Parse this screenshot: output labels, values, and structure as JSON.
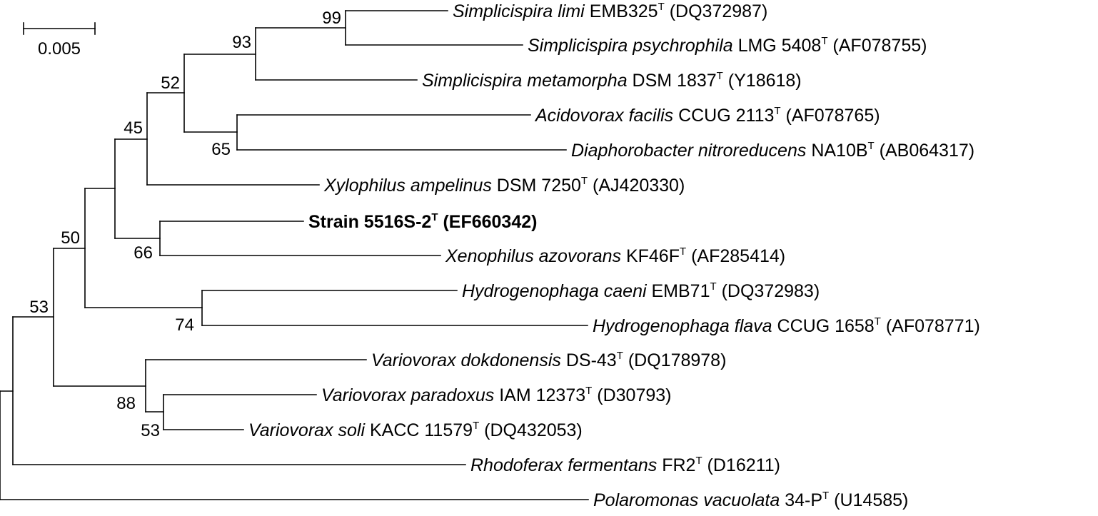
{
  "scale_bar": {
    "label": "0.005"
  },
  "taxa": [
    {
      "id": "s-limi",
      "italic": "Simplicispira limi",
      "strain": "EMB325",
      "sup": "T",
      "accession": "(DQ372987)",
      "bold": false
    },
    {
      "id": "s-psychrophila",
      "italic": "Simplicispira psychrophila",
      "strain": "LMG 5408",
      "sup": "T",
      "accession": "(AF078755)",
      "bold": false
    },
    {
      "id": "s-metamorpha",
      "italic": "Simplicispira metamorpha",
      "strain": "DSM 1837",
      "sup": "T",
      "accession": "(Y18618)",
      "bold": false
    },
    {
      "id": "a-facilis",
      "italic": "Acidovorax facilis",
      "strain": "CCUG 2113",
      "sup": "T",
      "accession": "(AF078765)",
      "bold": false
    },
    {
      "id": "d-nitroreducens",
      "italic": "Diaphorobacter nitroreducens",
      "strain": "NA10B",
      "sup": "T",
      "accession": "(AB064317)",
      "bold": false
    },
    {
      "id": "x-ampelinus",
      "italic": "Xylophilus ampelinus",
      "strain": "DSM 7250",
      "sup": "T",
      "accession": "(AJ420330)",
      "bold": false
    },
    {
      "id": "strain-5516s-2",
      "italic": "",
      "strain": "Strain 5516S-2",
      "sup": "T",
      "accession": "(EF660342)",
      "bold": true
    },
    {
      "id": "x-azovorans",
      "italic": "Xenophilus azovorans",
      "strain": "KF46F",
      "sup": "T",
      "accession": "(AF285414)",
      "bold": false
    },
    {
      "id": "h-caeni",
      "italic": "Hydrogenophaga caeni",
      "strain": "EMB71",
      "sup": "T",
      "accession": "(DQ372983)",
      "bold": false
    },
    {
      "id": "h-flava",
      "italic": "Hydrogenophaga flava",
      "strain": "CCUG 1658",
      "sup": "T",
      "accession": "(AF078771)",
      "bold": false
    },
    {
      "id": "v-dokdonensis",
      "italic": "Variovorax dokdonensis",
      "strain": "DS-43",
      "sup": "T",
      "accession": "(DQ178978)",
      "bold": false
    },
    {
      "id": "v-paradoxus",
      "italic": "Variovorax paradoxus",
      "strain": "IAM 12373",
      "sup": "T",
      "accession": "(D30793)",
      "bold": false
    },
    {
      "id": "v-soli",
      "italic": "Variovorax soli",
      "strain": "KACC 11579",
      "sup": "T",
      "accession": "(DQ432053)",
      "bold": false
    },
    {
      "id": "r-fermentans",
      "italic": "Rhodoferax fermentans",
      "strain": "FR2",
      "sup": "T",
      "accession": "(D16211)",
      "bold": false
    },
    {
      "id": "p-vacuolata",
      "italic": "Polaromonas vacuolata",
      "strain": "34-P",
      "sup": "T",
      "accession": "(U14585)",
      "bold": false
    }
  ],
  "bootstrap_values": [
    "99",
    "93",
    "52",
    "45",
    "65",
    "66",
    "50",
    "53",
    "74",
    "88",
    "53"
  ]
}
